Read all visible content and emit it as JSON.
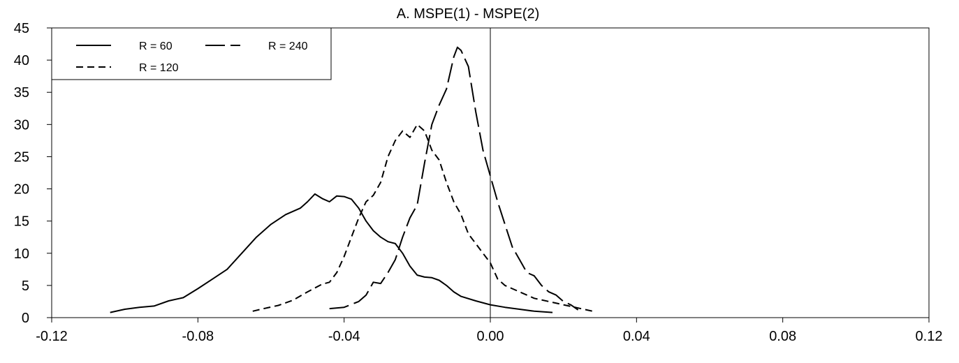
{
  "chart_data": {
    "type": "line",
    "title": "A.  MSPE(1) - MSPE(2)",
    "xlabel": "",
    "ylabel": "",
    "xlim": [
      -0.12,
      0.12
    ],
    "ylim": [
      0,
      45
    ],
    "x_ticks": [
      -0.12,
      -0.08,
      -0.04,
      0.0,
      0.04,
      0.08,
      0.12
    ],
    "x_tick_labels": [
      "-0.12",
      "-0.08",
      "-0.04",
      "0.00",
      "0.04",
      "0.08",
      "0.12"
    ],
    "y_ticks": [
      0,
      5,
      10,
      15,
      20,
      25,
      30,
      35,
      40,
      45
    ],
    "y_tick_labels": [
      "0",
      "5",
      "10",
      "15",
      "20",
      "25",
      "30",
      "35",
      "40",
      "45"
    ],
    "grid": false,
    "reference_line_x": 0.0,
    "legend": {
      "position": "top-left"
    },
    "series": [
      {
        "name": "R = 60",
        "dash": "solid",
        "x": [
          -0.104,
          -0.1,
          -0.096,
          -0.092,
          -0.088,
          -0.084,
          -0.08,
          -0.076,
          -0.072,
          -0.068,
          -0.064,
          -0.06,
          -0.056,
          -0.052,
          -0.05,
          -0.048,
          -0.046,
          -0.044,
          -0.042,
          -0.04,
          -0.038,
          -0.036,
          -0.034,
          -0.032,
          -0.03,
          -0.028,
          -0.026,
          -0.024,
          -0.022,
          -0.02,
          -0.018,
          -0.016,
          -0.014,
          -0.012,
          -0.01,
          -0.008,
          -0.004,
          0.0,
          0.004,
          0.008,
          0.012,
          0.017
        ],
        "y": [
          0.8,
          1.3,
          1.6,
          1.8,
          2.6,
          3.1,
          4.5,
          6.0,
          7.5,
          10.0,
          12.5,
          14.5,
          16.0,
          17.0,
          18.0,
          19.2,
          18.5,
          18.0,
          18.9,
          18.8,
          18.4,
          17.0,
          15.0,
          13.5,
          12.5,
          11.8,
          11.5,
          10.0,
          8.0,
          6.6,
          6.3,
          6.2,
          5.8,
          5.0,
          4.0,
          3.3,
          2.6,
          2.0,
          1.6,
          1.3,
          1.0,
          0.8
        ]
      },
      {
        "name": "R = 120",
        "dash": "short",
        "x": [
          -0.065,
          -0.062,
          -0.058,
          -0.054,
          -0.05,
          -0.046,
          -0.044,
          -0.042,
          -0.04,
          -0.038,
          -0.036,
          -0.034,
          -0.032,
          -0.03,
          -0.028,
          -0.026,
          -0.024,
          -0.022,
          -0.02,
          -0.018,
          -0.016,
          -0.014,
          -0.012,
          -0.01,
          -0.008,
          -0.006,
          -0.004,
          -0.002,
          0.0,
          0.002,
          0.004,
          0.008,
          0.012,
          0.016,
          0.02,
          0.024,
          0.028
        ],
        "y": [
          1.0,
          1.4,
          1.9,
          2.7,
          4.0,
          5.2,
          5.5,
          7.0,
          9.5,
          12.5,
          15.5,
          18.0,
          19.0,
          21.0,
          25.0,
          27.5,
          29.0,
          28.0,
          30.0,
          29.0,
          26.0,
          24.5,
          21.0,
          18.0,
          16.0,
          13.0,
          11.5,
          10.0,
          8.5,
          6.0,
          5.0,
          4.0,
          3.0,
          2.5,
          2.0,
          1.5,
          1.0
        ]
      },
      {
        "name": "R = 240",
        "dash": "long",
        "x": [
          -0.044,
          -0.04,
          -0.036,
          -0.034,
          -0.032,
          -0.03,
          -0.028,
          -0.026,
          -0.024,
          -0.022,
          -0.02,
          -0.018,
          -0.016,
          -0.014,
          -0.012,
          -0.01,
          -0.009,
          -0.008,
          -0.006,
          -0.004,
          -0.002,
          0.0,
          0.002,
          0.004,
          0.006,
          0.008,
          0.01,
          0.012,
          0.014,
          0.016,
          0.018,
          0.02,
          0.022,
          0.024
        ],
        "y": [
          1.4,
          1.6,
          2.5,
          3.5,
          5.5,
          5.3,
          7.0,
          9.0,
          12.5,
          15.5,
          17.5,
          24.0,
          30.0,
          33.0,
          35.5,
          40.5,
          42.0,
          41.5,
          39.0,
          32.0,
          26.0,
          22.0,
          18.0,
          14.5,
          11.0,
          9.0,
          7.0,
          6.5,
          5.0,
          4.0,
          3.5,
          2.5,
          2.0,
          1.2
        ]
      }
    ]
  }
}
